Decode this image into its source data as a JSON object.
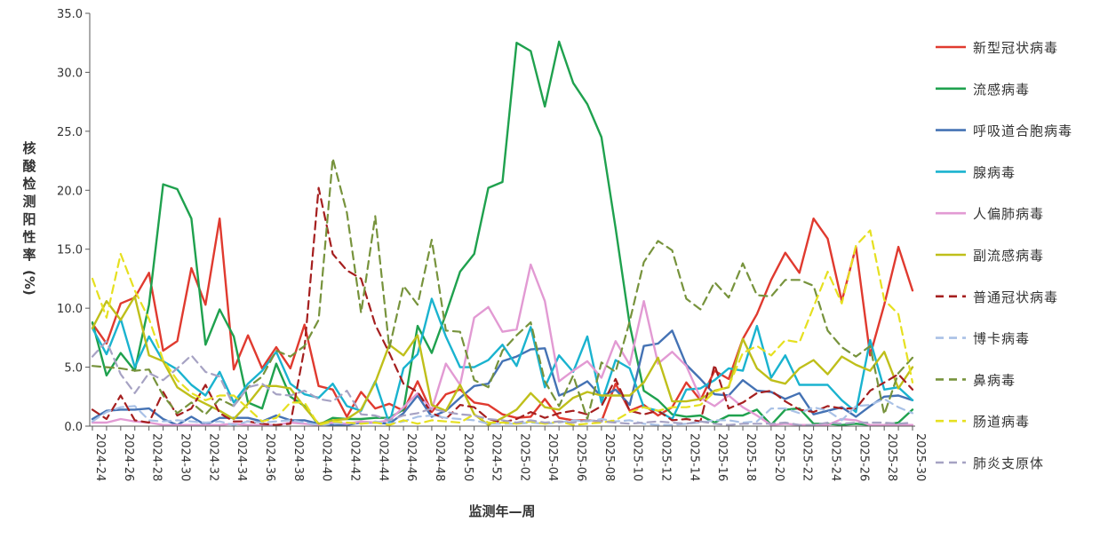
{
  "chart_data": {
    "type": "line",
    "title": "",
    "xlabel": "监测年—周",
    "ylabel": "核酸检测阳性率(%)",
    "ylim": [
      0,
      35
    ],
    "yticks": [
      0,
      5,
      10,
      15,
      20,
      25,
      30,
      35
    ],
    "ytick_labels": [
      "0.0",
      "5.0",
      "10.0",
      "15.0",
      "20.0",
      "25.0",
      "30.0",
      "35.0"
    ],
    "grid": false,
    "legend_position": "right",
    "categories": [
      "2024-24",
      "2024-25",
      "2024-26",
      "2024-27",
      "2024-28",
      "2024-29",
      "2024-30",
      "2024-31",
      "2024-32",
      "2024-33",
      "2024-34",
      "2024-35",
      "2024-36",
      "2024-37",
      "2024-38",
      "2024-39",
      "2024-40",
      "2024-41",
      "2024-42",
      "2024-43",
      "2024-44",
      "2024-45",
      "2024-46",
      "2024-47",
      "2024-48",
      "2024-49",
      "2024-50",
      "2024-51",
      "2024-52",
      "2025-01",
      "2025-02",
      "2025-03",
      "2025-04",
      "2025-05",
      "2025-06",
      "2025-07",
      "2025-08",
      "2025-09",
      "2025-10",
      "2025-11",
      "2025-12",
      "2025-13",
      "2025-14",
      "2025-15",
      "2025-16",
      "2025-17",
      "2025-18",
      "2025-19",
      "2025-20",
      "2025-21",
      "2025-22",
      "2025-23",
      "2025-24",
      "2025-25",
      "2025-26",
      "2025-27",
      "2025-28",
      "2025-29",
      "2025-30"
    ],
    "tick_labels": [
      "2024-24",
      "2024-26",
      "2024-28",
      "2024-30",
      "2024-32",
      "2024-34",
      "2024-36",
      "2024-38",
      "2024-40",
      "2024-42",
      "2024-44",
      "2024-46",
      "2024-48",
      "2024-50",
      "2024-52",
      "2025-02",
      "2025-04",
      "2025-06",
      "2025-08",
      "2025-10",
      "2025-12",
      "2025-14",
      "2025-16",
      "2025-18",
      "2025-20",
      "2025-22",
      "2025-24",
      "2025-26",
      "2025-28",
      "2025-30"
    ],
    "series": [
      {
        "name": "新型冠状病毒",
        "color": "#e03a2f",
        "dash": false,
        "values": [
          8.7,
          7.0,
          10.4,
          10.9,
          13.0,
          6.4,
          7.2,
          13.4,
          10.3,
          17.6,
          4.8,
          7.7,
          4.9,
          6.7,
          4.9,
          8.6,
          3.4,
          3.1,
          0.8,
          2.9,
          1.5,
          1.9,
          1.3,
          3.8,
          1.2,
          2.7,
          3.1,
          2.0,
          1.8,
          1.0,
          0.7,
          0.8,
          2.3,
          0.7,
          0.5,
          0.5,
          0.4,
          3.6,
          1.3,
          1.8,
          0.9,
          1.6,
          3.7,
          2.2,
          4.7,
          4.0,
          7.4,
          9.5,
          12.4,
          14.7,
          13.0,
          17.6,
          15.9,
          10.6,
          15.2,
          6.0,
          10.3,
          15.2,
          11.5
        ]
      },
      {
        "name": "流感病毒",
        "color": "#1fa14e",
        "dash": false,
        "values": [
          8.8,
          4.3,
          6.2,
          4.7,
          10.3,
          20.5,
          20.1,
          17.6,
          6.9,
          9.9,
          7.6,
          2.0,
          1.5,
          5.3,
          2.5,
          1.7,
          0.1,
          0.7,
          0.6,
          0.6,
          0.7,
          0.7,
          1.4,
          8.5,
          6.2,
          9.5,
          13.1,
          14.6,
          20.2,
          20.7,
          32.5,
          31.8,
          27.1,
          32.6,
          29.1,
          27.3,
          24.5,
          16.8,
          8.6,
          3.0,
          2.2,
          1.0,
          0.8,
          0.9,
          0.3,
          0.9,
          0.9,
          1.4,
          0.1,
          1.4,
          1.5,
          0.2,
          0.2,
          0.1,
          0.2,
          0.1,
          0.1,
          0.3,
          1.4
        ]
      },
      {
        "name": "呼吸道合胞病毒",
        "color": "#4472b4",
        "dash": false,
        "values": [
          0.6,
          1.3,
          1.4,
          1.4,
          1.5,
          0.6,
          0.1,
          0.8,
          0.1,
          0.7,
          0.7,
          0.7,
          0.4,
          0.9,
          0.5,
          0.5,
          0.2,
          0.1,
          0.1,
          0.3,
          0.3,
          0.2,
          1.1,
          2.6,
          0.8,
          1.3,
          2.4,
          3.4,
          3.6,
          5.5,
          5.9,
          6.5,
          6.6,
          2.6,
          3.1,
          3.8,
          2.5,
          3.1,
          1.8,
          6.8,
          7.0,
          8.1,
          5.2,
          4.0,
          2.7,
          2.6,
          3.9,
          3.0,
          2.9,
          2.3,
          2.8,
          1.0,
          1.3,
          1.6,
          0.8,
          1.7,
          2.5,
          2.6,
          2.2
        ]
      },
      {
        "name": "腺病毒",
        "color": "#1ab3cf",
        "dash": false,
        "values": [
          8.3,
          6.1,
          9.1,
          5.0,
          7.6,
          5.5,
          4.8,
          3.5,
          2.6,
          4.6,
          2.0,
          3.6,
          4.7,
          6.3,
          3.6,
          2.7,
          2.4,
          3.6,
          1.7,
          1.3,
          3.8,
          0.2,
          4.9,
          6.1,
          10.8,
          7.6,
          5.0,
          5.0,
          5.6,
          6.9,
          5.1,
          8.4,
          3.3,
          6.0,
          4.6,
          7.6,
          2.0,
          5.6,
          4.9,
          1.6,
          1.3,
          0.6,
          3.1,
          3.2,
          3.9,
          4.9,
          4.7,
          8.5,
          4.1,
          6.0,
          3.5,
          3.5,
          3.5,
          2.2,
          1.2,
          7.3,
          3.1,
          3.3,
          2.2
        ]
      },
      {
        "name": "人偏肺病毒",
        "color": "#e29ad3",
        "dash": false,
        "values": [
          0.3,
          0.3,
          0.6,
          0.4,
          0.3,
          0.1,
          0.1,
          0.1,
          0.1,
          0.1,
          0.2,
          0.1,
          0.1,
          0.1,
          0.3,
          0.2,
          0.1,
          0.3,
          0.2,
          0.4,
          0.3,
          0.5,
          1.6,
          2.8,
          1.4,
          5.3,
          3.5,
          9.2,
          10.1,
          8.0,
          8.2,
          13.7,
          10.6,
          3.8,
          4.7,
          5.5,
          4.1,
          7.2,
          5.2,
          10.6,
          5.3,
          6.3,
          5.1,
          2.4,
          1.7,
          2.6,
          1.6,
          0.9,
          0.1,
          0.2,
          0.1,
          0.1,
          0.1,
          0.6,
          0.5,
          0.1,
          0.1,
          0.1,
          0.1
        ]
      },
      {
        "name": "副流感病毒",
        "color": "#bfbf1a",
        "dash": false,
        "values": [
          8.3,
          10.6,
          9.0,
          11.0,
          6.0,
          5.5,
          3.3,
          2.5,
          1.9,
          1.3,
          0.6,
          1.9,
          3.4,
          3.4,
          3.2,
          1.6,
          0.2,
          0.5,
          0.6,
          1.4,
          3.7,
          6.9,
          6.0,
          7.7,
          1.8,
          1.3,
          3.5,
          1.0,
          0.1,
          0.7,
          1.4,
          2.8,
          1.6,
          1.4,
          2.4,
          2.9,
          2.6,
          2.6,
          2.6,
          3.7,
          5.8,
          2.1,
          2.1,
          2.3,
          3.0,
          3.3,
          7.4,
          4.9,
          3.9,
          3.6,
          4.9,
          5.6,
          4.4,
          5.9,
          5.2,
          4.7,
          6.3,
          3.2,
          5.0
        ]
      },
      {
        "name": "普通冠状病毒",
        "color": "#a51f1f",
        "dash": true,
        "values": [
          1.4,
          0.6,
          2.6,
          0.5,
          0.3,
          2.9,
          0.9,
          1.5,
          3.5,
          1.1,
          0.4,
          0.4,
          0.2,
          0.1,
          0.2,
          6.6,
          20.2,
          14.6,
          13.2,
          12.5,
          8.6,
          6.2,
          3.6,
          2.9,
          1.1,
          0.6,
          1.8,
          1.6,
          0.6,
          0.3,
          0.6,
          1.2,
          0.7,
          1.1,
          1.3,
          1.0,
          1.7,
          4.0,
          1.3,
          1.0,
          1.3,
          0.5,
          0.6,
          0.4,
          5.2,
          1.5,
          2.0,
          2.8,
          3.0,
          2.1,
          1.4,
          1.2,
          1.7,
          1.5,
          1.5,
          3.0,
          3.7,
          4.4,
          3.1
        ]
      },
      {
        "name": "博卡病毒",
        "color": "#a9c1e6",
        "dash": true,
        "values": [
          0.4,
          1.2,
          1.6,
          1.7,
          0.5,
          0.4,
          0.5,
          0.4,
          0.3,
          0.4,
          0.1,
          0.4,
          0.3,
          0.4,
          0.5,
          0.3,
          0.1,
          0.2,
          0.3,
          0.2,
          0.4,
          0.2,
          0.4,
          0.8,
          0.9,
          0.7,
          0.6,
          0.5,
          0.2,
          0.2,
          0.2,
          0.3,
          0.2,
          0.3,
          0.5,
          0.4,
          0.6,
          0.4,
          0.5,
          0.2,
          0.1,
          0.1,
          0.2,
          0.3,
          0.5,
          0.5,
          0.3,
          0.4,
          1.5,
          1.5,
          1.1,
          1.6,
          1.3,
          0.5,
          1.7,
          1.8,
          2.3,
          1.6,
          1.1
        ]
      },
      {
        "name": "鼻病毒",
        "color": "#77933c",
        "dash": true,
        "values": [
          5.1,
          5.0,
          4.9,
          4.7,
          4.8,
          2.6,
          1.1,
          2.0,
          1.0,
          2.3,
          1.7,
          3.3,
          4.2,
          6.4,
          5.9,
          6.8,
          9.0,
          22.7,
          18.1,
          9.6,
          17.8,
          6.6,
          11.9,
          10.3,
          15.8,
          8.1,
          8.0,
          3.9,
          3.3,
          6.4,
          7.7,
          8.8,
          3.8,
          1.7,
          4.3,
          0.6,
          5.4,
          4.6,
          8.9,
          13.9,
          15.7,
          14.9,
          10.8,
          9.9,
          12.2,
          10.9,
          13.8,
          11.1,
          11.0,
          12.4,
          12.4,
          11.9,
          8.1,
          6.7,
          5.9,
          6.8,
          1.0,
          4.5,
          5.8
        ]
      },
      {
        "name": "肠道病毒",
        "color": "#e6e020",
        "dash": true,
        "values": [
          12.5,
          9.2,
          14.6,
          11.5,
          9.1,
          5.6,
          3.9,
          2.8,
          2.2,
          2.6,
          2.6,
          1.5,
          0.4,
          0.7,
          2.0,
          2.0,
          0.1,
          0.4,
          0.3,
          0.2,
          0.3,
          0.1,
          0.5,
          0.2,
          0.5,
          0.4,
          0.3,
          1.0,
          0.3,
          0.3,
          0.2,
          0.4,
          0.2,
          0.4,
          0.1,
          0.2,
          0.3,
          0.5,
          1.2,
          1.6,
          1.3,
          1.6,
          1.6,
          1.8,
          2.9,
          3.4,
          6.2,
          6.8,
          6.0,
          7.3,
          7.1,
          10.1,
          13.1,
          10.4,
          15.3,
          16.6,
          10.7,
          9.5,
          3.7
        ]
      },
      {
        "name": "肺炎支原体",
        "color": "#a6a2c3",
        "dash": true,
        "values": [
          5.9,
          7.2,
          4.4,
          2.8,
          4.5,
          3.9,
          4.9,
          6.0,
          4.6,
          4.2,
          1.7,
          3.3,
          3.6,
          2.7,
          2.6,
          3.0,
          2.3,
          2.1,
          3.0,
          1.0,
          0.9,
          0.5,
          0.9,
          1.1,
          1.5,
          1.2,
          1.0,
          0.9,
          0.6,
          0.5,
          0.3,
          0.5,
          0.3,
          0.4,
          0.3,
          0.5,
          0.4,
          0.3,
          0.2,
          0.3,
          0.4,
          0.3,
          0.2,
          0.4,
          0.2,
          0.1,
          0.2,
          0.2,
          0.2,
          0.3,
          0.1,
          0.1,
          0.3,
          0.2,
          0.3,
          0.3,
          0.3,
          0.2,
          0.3
        ]
      }
    ]
  }
}
